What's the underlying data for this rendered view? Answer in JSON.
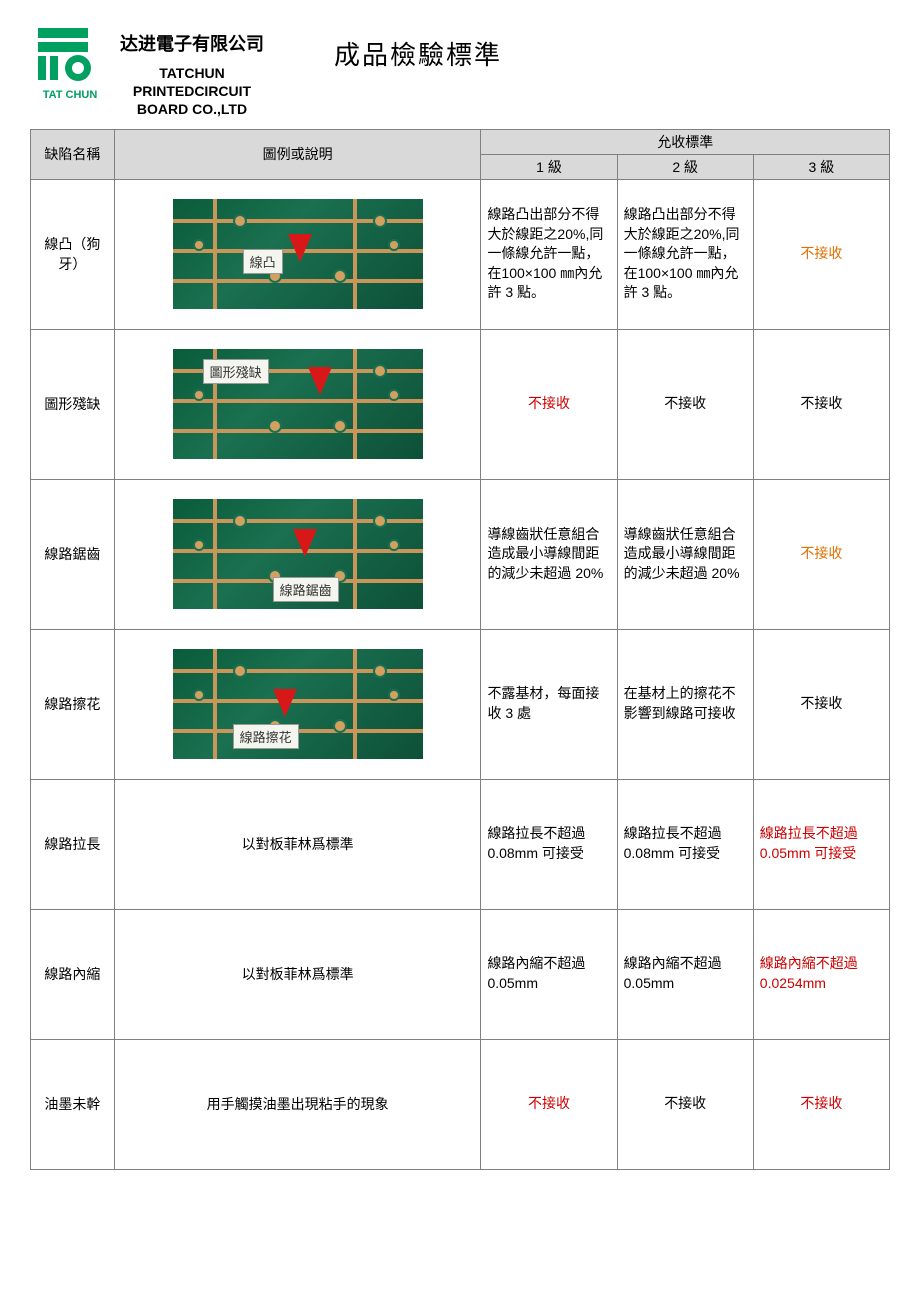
{
  "header": {
    "company_cn": "达进電子有限公司",
    "company_en_line1": "TATCHUN",
    "company_en_line2": "PRINTEDCIRCUIT",
    "company_en_line3": "BOARD CO.,LTD",
    "logo_text": "TAT CHUN",
    "doc_title": "成品檢驗標準"
  },
  "table": {
    "head": {
      "defect": "缺陷名稱",
      "illustration": "圖例或說明",
      "acceptance": "允收標準",
      "level1": "1 級",
      "level2": "2 級",
      "level3": "3 級"
    },
    "rows": [
      {
        "defect": "線凸（狗牙）",
        "img_type": "pcb",
        "img_label": "線凸",
        "arrow_pos": "center",
        "level1": {
          "text": "線路凸出部分不得大於線距之20%,同一條線允許一點，在100×100 ㎜內允許 3 點。",
          "color": "black",
          "align": "left"
        },
        "level2": {
          "text": "線路凸出部分不得大於線距之20%,同一條線允許一點，在100×100 ㎜內允許 3 點。",
          "color": "black",
          "align": "left"
        },
        "level3": {
          "text": "不接收",
          "color": "orange",
          "align": "center"
        }
      },
      {
        "defect": "圖形殘缺",
        "img_type": "pcb",
        "img_label": "圖形殘缺",
        "arrow_pos": "top",
        "level1": {
          "text": "不接收",
          "color": "red",
          "align": "center"
        },
        "level2": {
          "text": "不接收",
          "color": "black",
          "align": "center"
        },
        "level3": {
          "text": "不接收",
          "color": "black",
          "align": "center"
        }
      },
      {
        "defect": "線路鋸齒",
        "img_type": "pcb",
        "img_label": "線路鋸齒",
        "arrow_pos": "mid",
        "level1": {
          "text": "導線齒狀任意組合造成最小導線間距的減少未超過 20%",
          "color": "black",
          "align": "left"
        },
        "level2": {
          "text": "導線齒狀任意組合造成最小導線間距的減少未超過 20%",
          "color": "black",
          "align": "left"
        },
        "level3": {
          "text": "不接收",
          "color": "orange",
          "align": "center"
        }
      },
      {
        "defect": "線路擦花",
        "img_type": "pcb",
        "img_label": "線路擦花",
        "arrow_pos": "low",
        "level1": {
          "text": "不露基材，每面接收 3 處",
          "color": "black",
          "align": "left"
        },
        "level2": {
          "text": "在基材上的擦花不影響到線路可接收",
          "color": "black",
          "align": "left"
        },
        "level3": {
          "text": "不接收",
          "color": "black",
          "align": "center"
        }
      },
      {
        "defect": "線路拉長",
        "img_type": "text",
        "img_text": "以對板菲林爲標準",
        "level1": {
          "text": "線路拉長不超過0.08mm 可接受",
          "color": "black",
          "align": "left"
        },
        "level2": {
          "text": "線路拉長不超過0.08mm 可接受",
          "color": "black",
          "align": "left"
        },
        "level3": {
          "text": "線路拉長不超過0.05mm 可接受",
          "color": "red",
          "align": "left"
        }
      },
      {
        "defect": "線路內縮",
        "img_type": "text",
        "img_text": "以對板菲林爲標準",
        "level1": {
          "text": "線路內縮不超過0.05mm",
          "color": "black",
          "align": "left"
        },
        "level2": {
          "text": "線路內縮不超過0.05mm",
          "color": "black",
          "align": "left"
        },
        "level3": {
          "text": "線路內縮不超過0.0254mm",
          "color": "red",
          "align": "left"
        }
      },
      {
        "defect": "油墨未幹",
        "img_type": "text",
        "img_text": "用手觸摸油墨出現粘手的現象",
        "level1": {
          "text": "不接收",
          "color": "red",
          "align": "center"
        },
        "level2": {
          "text": "不接收",
          "color": "black",
          "align": "center"
        },
        "level3": {
          "text": "不接收",
          "color": "red",
          "align": "center"
        }
      }
    ]
  },
  "styling": {
    "header_bg": "#d9d9d9",
    "border_color": "#808080",
    "red": "#cc0000",
    "orange": "#e07000",
    "logo_green": "#00a060",
    "pcb_green": "#0a5c3a",
    "trace_copper": "#c9955a",
    "arrow_red": "#d81818"
  }
}
